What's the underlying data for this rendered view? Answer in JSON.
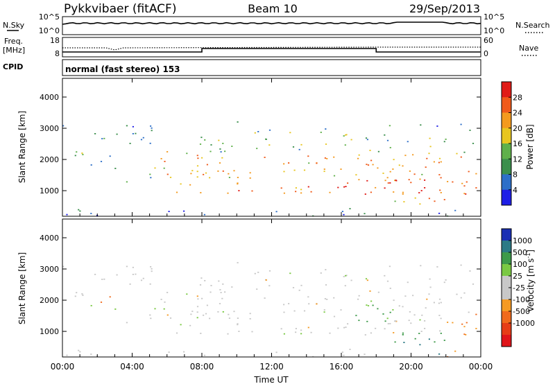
{
  "header": {
    "station": "Pykkvibaer (fitACF)",
    "beam": "Beam 10",
    "date": "29/Sep/2013"
  },
  "noise_panel": {
    "left_label": "N.Sky",
    "left_ticks": [
      "10^5",
      "10^0"
    ],
    "right_ticks": [
      "10^5",
      "10^0"
    ],
    "right_label": "N.Search"
  },
  "freq_panel": {
    "left_label_1": "Freq.",
    "left_label_2": "[MHz]",
    "left_ticks": [
      "18",
      "8"
    ],
    "right_ticks": [
      "60",
      "0"
    ],
    "right_label": "Nave"
  },
  "cpid_panel": {
    "label": "CPID",
    "value": "normal (fast stereo) 153"
  },
  "chart_data": [
    {
      "type": "heatmap",
      "title": "",
      "ylabel": "Slant Range [km]",
      "ylim": [
        180,
        4600
      ],
      "yticks": [
        1000,
        2000,
        3000,
        4000
      ],
      "xlim": [
        "00:00",
        "24:00"
      ],
      "colorbar": {
        "label": "Power [dB]",
        "range": [
          0,
          32
        ],
        "ticks": [
          "4",
          "8",
          "12",
          "16",
          "20",
          "24",
          "28"
        ],
        "colors": [
          "#1e1ee6",
          "#2d6fc8",
          "#3b8f4c",
          "#5fb04b",
          "#e8c620",
          "#f49a1e",
          "#f05a1a",
          "#e01b17"
        ]
      }
    },
    {
      "type": "heatmap",
      "title": "",
      "ylabel": "Slant Range [km]",
      "ylim": [
        180,
        4600
      ],
      "yticks": [
        1000,
        2000,
        3000,
        4000
      ],
      "xlim": [
        "00:00",
        "24:00"
      ],
      "xticks": [
        "00:00",
        "04:00",
        "08:00",
        "12:00",
        "16:00",
        "20:00",
        "00:00"
      ],
      "xlabel": "Time UT",
      "colorbar": {
        "label": "Velocity [m s^-1]",
        "ticks": [
          "1000",
          "500",
          "100",
          "25",
          "-25",
          "-100",
          "-500",
          "-1000"
        ],
        "colors": [
          "#1a2fb4",
          "#2c7a86",
          "#3d9a4a",
          "#7ac943",
          "#c8c8c8",
          "#c8c8c8",
          "#f59a23",
          "#f06a1c",
          "#e63d17",
          "#e0151a"
        ]
      }
    }
  ]
}
